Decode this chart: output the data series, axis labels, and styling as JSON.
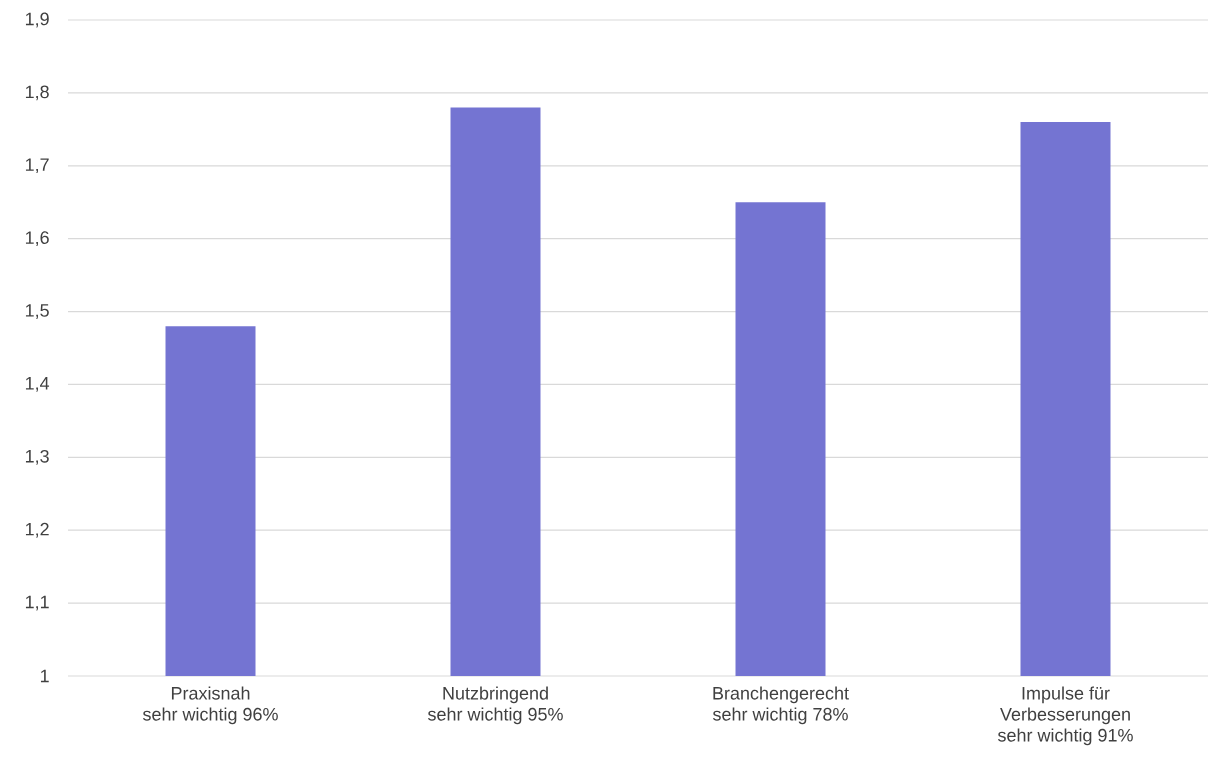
{
  "chart_data": {
    "type": "bar",
    "categories": [
      "Praxisnah\nsehr wichtig 96%",
      "Nutzbringend\nsehr wichtig 95%",
      "Branchengerecht\nsehr wichtig 78%",
      "Impulse für\nVerbesserungen\nsehr wichtig 91%"
    ],
    "values": [
      1.48,
      1.78,
      1.65,
      1.76
    ],
    "color": "#7474d2",
    "ylim": [
      1,
      1.9
    ],
    "yticks": [
      1,
      {
        "value": 1.1,
        "label": "1,1"
      },
      {
        "value": 1.2,
        "label": "1,2"
      },
      {
        "value": 1.3,
        "label": "1,3"
      },
      {
        "value": 1.4,
        "label": "1,4"
      },
      {
        "value": 1.5,
        "label": "1,5"
      },
      {
        "value": 1.6,
        "label": "1,6"
      },
      {
        "value": 1.7,
        "label": "1,7"
      },
      {
        "value": 1.8,
        "label": "1,8"
      },
      {
        "value": 1.9,
        "label": "1,9"
      }
    ],
    "grid": "y"
  }
}
